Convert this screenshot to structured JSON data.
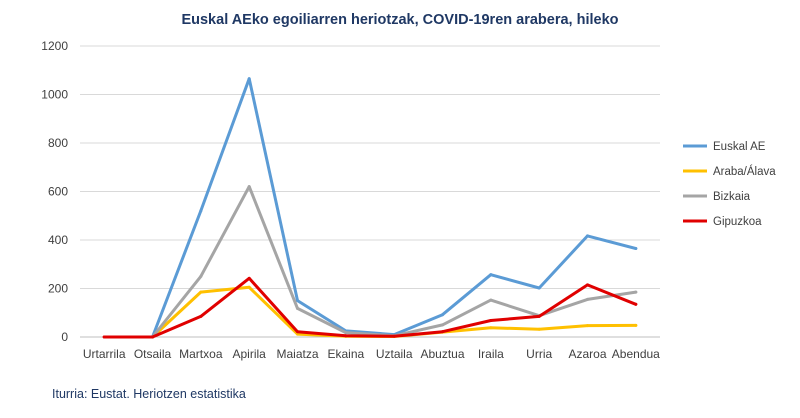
{
  "chart_data": {
    "type": "line",
    "title": "Euskal AEko egoiliarren heriotzak, COVID-19ren arabera, hileko",
    "xlabel": "",
    "ylabel": "",
    "ylim": [
      0,
      1200
    ],
    "yticks": [
      0,
      200,
      400,
      600,
      800,
      1000,
      1200
    ],
    "grid": true,
    "legend_position": "right",
    "categories": [
      "Urtarrila",
      "Otsaila",
      "Martxoa",
      "Apirila",
      "Maiatza",
      "Ekaina",
      "Uztaila",
      "Abuztua",
      "Iraila",
      "Urria",
      "Azaroa",
      "Abendua"
    ],
    "series": [
      {
        "name": "Euskal AE",
        "color": "#5b9bd5",
        "values": [
          null,
          0,
          520,
          1065,
          150,
          25,
          10,
          92,
          257,
          202,
          417,
          365
        ]
      },
      {
        "name": "Araba/Álava",
        "color": "#ffc000",
        "values": [
          null,
          0,
          185,
          205,
          12,
          3,
          2,
          20,
          38,
          32,
          47,
          48
        ]
      },
      {
        "name": "Bizkaia",
        "color": "#a5a5a5",
        "values": [
          null,
          0,
          250,
          620,
          118,
          18,
          5,
          50,
          152,
          88,
          155,
          185
        ]
      },
      {
        "name": "Gipuzkoa",
        "color": "#e00000",
        "values": [
          0,
          0,
          85,
          242,
          22,
          5,
          3,
          22,
          68,
          85,
          215,
          135
        ]
      }
    ]
  },
  "source": "Iturria: Eustat. Heriotzen estatistika"
}
